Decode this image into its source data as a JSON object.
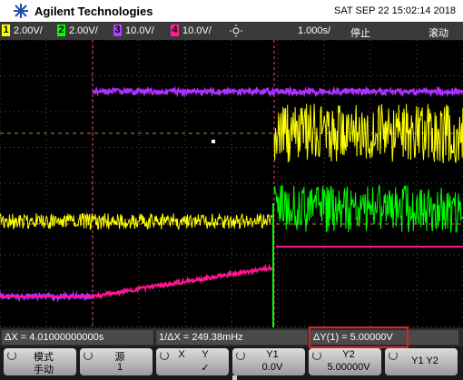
{
  "header": {
    "brand": "Agilent Technologies",
    "datetime": "SAT SEP 22 15:02:14 2018"
  },
  "channels": [
    {
      "number": "1",
      "scale": "2.00V/"
    },
    {
      "number": "2",
      "scale": "2.00V/"
    },
    {
      "number": "3",
      "scale": "10.0V/"
    },
    {
      "number": "4",
      "scale": "10.0V/"
    }
  ],
  "timebase": "1.000s/",
  "status": "停止",
  "mode": "滚动",
  "measurements": {
    "delta_x": "ΔX = 4.01000000000s",
    "inv_delta_x": "1/ΔX = 249.38mHz",
    "delta_y": "ΔY(1) = 5.00000V"
  },
  "softkeys": [
    {
      "lines": [
        "模式",
        "手动"
      ]
    },
    {
      "lines": [
        "源",
        "1"
      ]
    },
    {
      "lines": [
        "X",
        "Y",
        "✓"
      ]
    },
    {
      "lines": [
        "Y1",
        "0.0V"
      ]
    },
    {
      "lines": [
        "Y2",
        "5.00000V"
      ]
    },
    {
      "lines": [
        "Y1 Y2"
      ]
    }
  ]
}
